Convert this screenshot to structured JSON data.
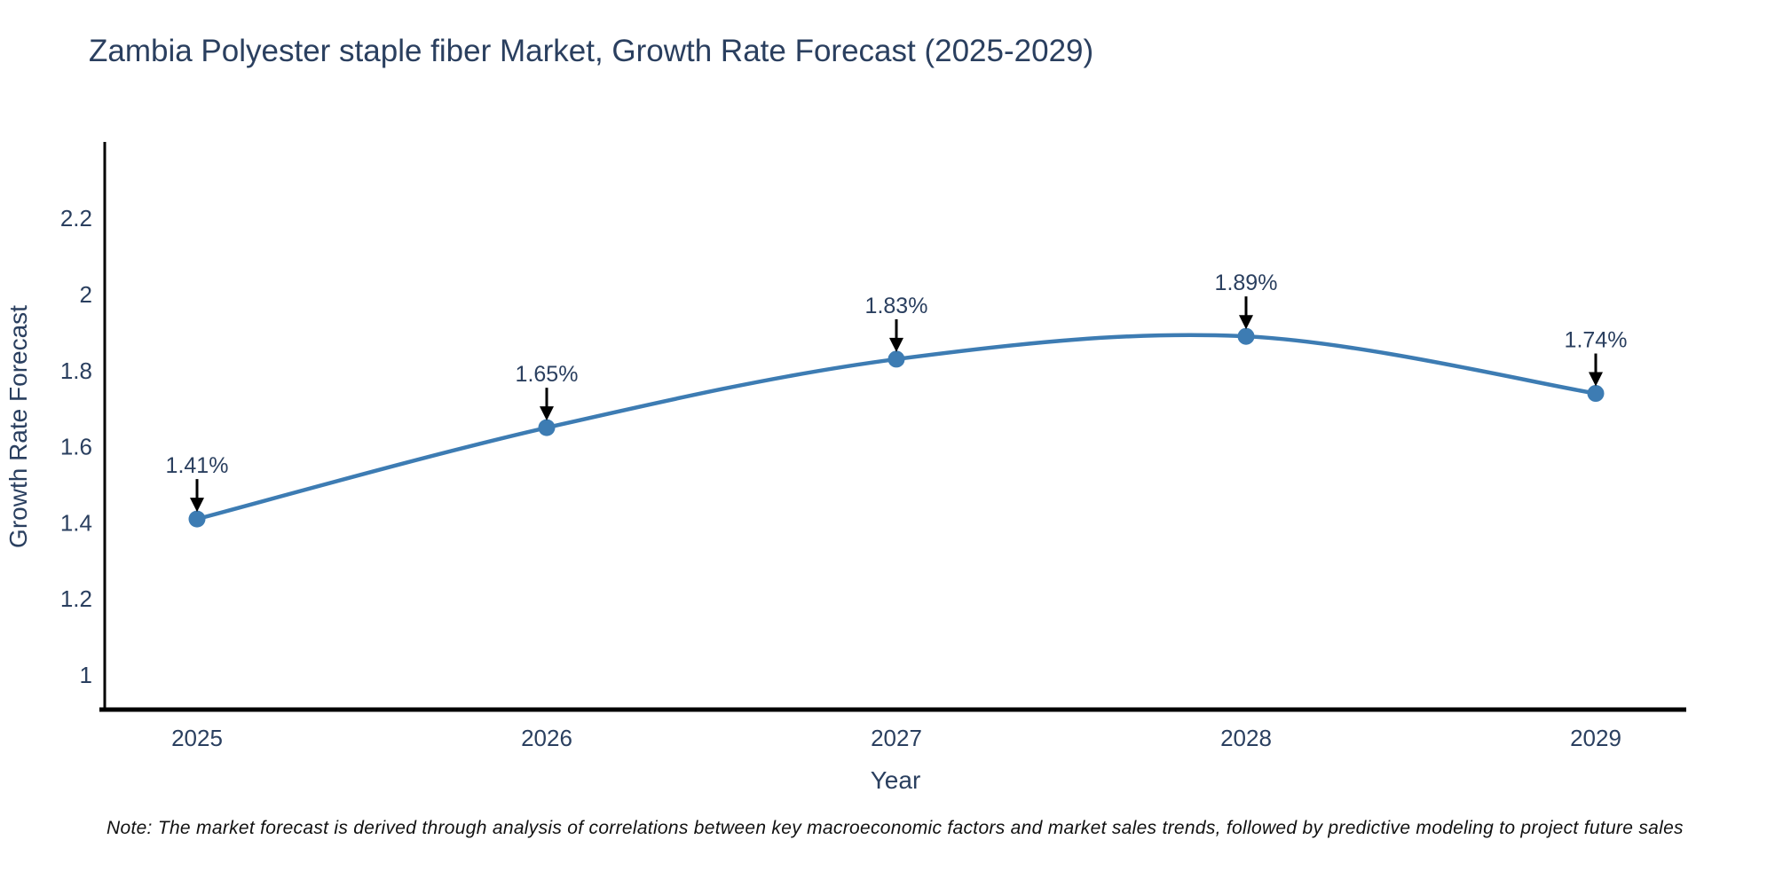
{
  "chart_data": {
    "type": "line",
    "line_shape": "spline",
    "title": "Zambia Polyester staple fiber Market, Growth Rate Forecast (2025-2029)",
    "xlabel": "Year",
    "ylabel": "Growth Rate Forecast",
    "categories": [
      "2025",
      "2026",
      "2027",
      "2028",
      "2029"
    ],
    "series": [
      {
        "name": "Growth Rate Forecast",
        "values": [
          1.41,
          1.65,
          1.83,
          1.89,
          1.74
        ],
        "point_labels": [
          "1.41%",
          "1.65%",
          "1.83%",
          "1.89%",
          "1.74%"
        ]
      }
    ],
    "yticks": [
      "1",
      "1.2",
      "1.4",
      "1.6",
      "1.8",
      "2",
      "2.2"
    ],
    "ylim": [
      0.9,
      2.4
    ],
    "grid": false,
    "legend_position": "none",
    "colors": {
      "line": "#3d7cb3",
      "marker": "#3d7cb3",
      "label_text": "#2a3f5f",
      "arrow": "#000000",
      "axis": "#000000"
    },
    "note": "Note: The market forecast is derived through analysis of correlations between key macroeconomic factors and market sales trends, followed by predictive modeling to project future sales"
  }
}
